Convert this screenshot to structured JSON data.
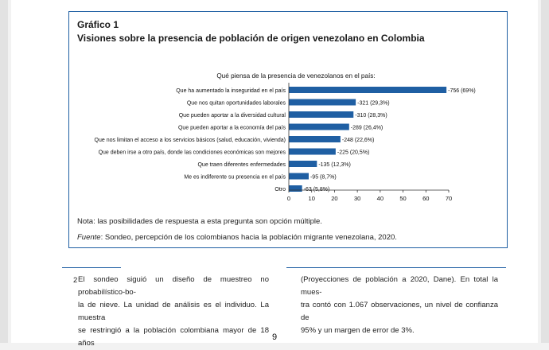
{
  "figure": {
    "number": "Gráfico 1",
    "title": "Visiones sobre la presencia de población de origen venezolano en Colombia",
    "note": "Nota: las posibilidades de respuesta a esta pregunta son opción múltiple.",
    "source_label": "Fuente",
    "source_text": ": Sondeo, percepción de los colombianos hacia la población migrante venezolana, 2020."
  },
  "chart_data": {
    "type": "bar",
    "orientation": "horizontal",
    "title": "Qué piensa de la presencia de venezolanos en el país:",
    "categories": [
      "Que ha aumentado la inseguridad en el país",
      "Que nos quitan oportunidades laborales",
      "Que pueden aportar a la diversidad cultural",
      "Que pueden aportar a la economía del país",
      "Que nos limitan el acceso a los servicios básicos (salud, educación, vivienda)",
      "Que deben irse a otro país, donde las condiciones económicas son mejores",
      "Que traen diferentes enfermedades",
      "Me es indiferente su presencia en el país",
      "Otro"
    ],
    "values": [
      69,
      29.3,
      28.3,
      26.4,
      22.6,
      20.5,
      12.3,
      8.7,
      5.8
    ],
    "data_labels": [
      "756 (69%)",
      "321 (29,3%)",
      "310 (28,3%)",
      "289 (26,4%)",
      "248 (22,6%)",
      "225 (20,5%)",
      "135 (12,3%)",
      "95 (8,7%)",
      "63 (5,8%)"
    ],
    "xlim": [
      0,
      70
    ],
    "xticks": [
      0,
      10,
      20,
      30,
      40,
      50,
      60,
      70
    ],
    "xlabel": "",
    "ylabel": "",
    "grid": false,
    "bar_color": "#1f5fa3"
  },
  "footnote": {
    "number": "2",
    "left_lines": [
      "El sondeo siguió un diseño de muestreo no probabilístico-bo-",
      "la de nieve. La unidad de análisis es el individuo. La muestra",
      "se restringió a la población colombiana mayor de 18 años"
    ],
    "right_lines": [
      "(Proyecciones de población a 2020, Dane). En total la mues-",
      "tra contó con 1.067 observaciones, un nivel de confianza de",
      "95% y un margen de error de 3%."
    ]
  },
  "page_number": "9"
}
